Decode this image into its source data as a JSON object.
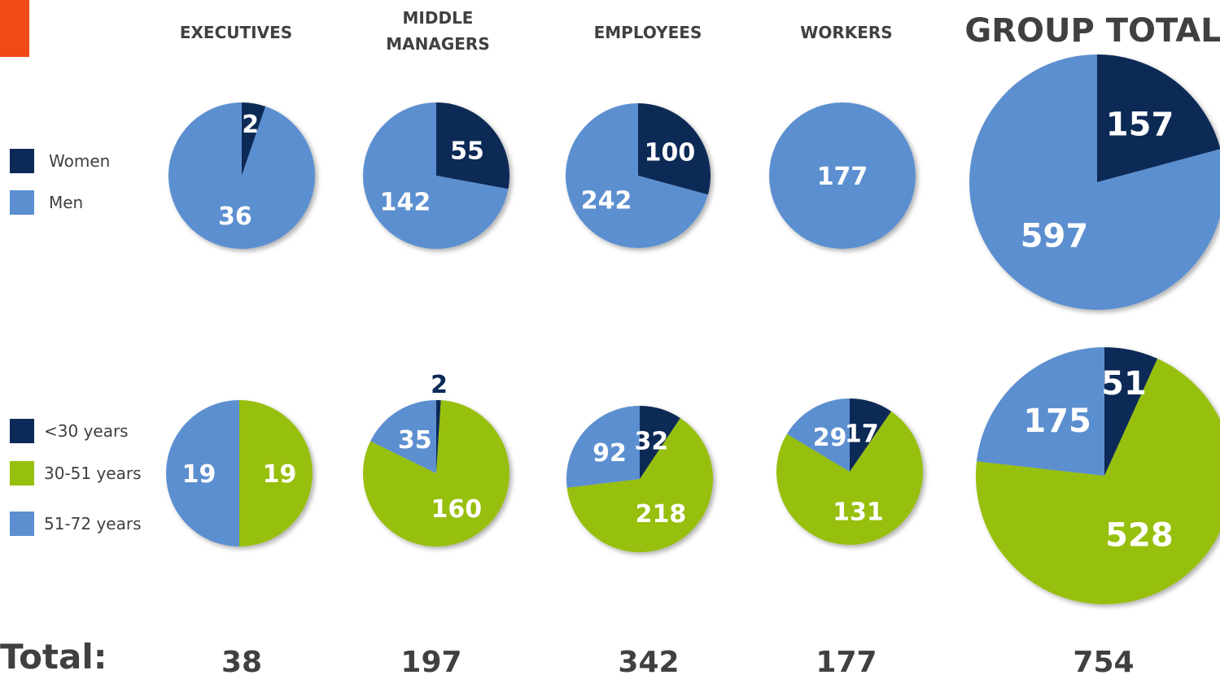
{
  "columns": [
    {
      "title": "EXECUTIVES",
      "total": 38
    },
    {
      "title": "MIDDLE MANAGERS",
      "total": 197
    },
    {
      "title": "EMPLOYEES",
      "total": 342
    },
    {
      "title": "WORKERS",
      "total": 177
    },
    {
      "title": "GROUP TOTAL",
      "total": 754
    }
  ],
  "total_label": "Total:",
  "chart_data": [
    {
      "type": "pie",
      "categories": [
        "Women",
        "Men"
      ],
      "values": [
        2,
        36
      ],
      "colors": [
        "#0c2a57",
        "#5b8fd0"
      ]
    },
    {
      "type": "pie",
      "categories": [
        "Women",
        "Men"
      ],
      "values": [
        55,
        142
      ],
      "colors": [
        "#0c2a57",
        "#5b8fd0"
      ]
    },
    {
      "type": "pie",
      "categories": [
        "Women",
        "Men"
      ],
      "values": [
        100,
        242
      ],
      "colors": [
        "#0c2a57",
        "#5b8fd0"
      ]
    },
    {
      "type": "pie",
      "categories": [
        "Men"
      ],
      "values": [
        177
      ],
      "colors": [
        "#5b8fd0"
      ]
    },
    {
      "type": "pie",
      "categories": [
        "Women",
        "Men"
      ],
      "values": [
        157,
        597
      ],
      "colors": [
        "#0c2a57",
        "#5b8fd0"
      ]
    },
    {
      "type": "pie",
      "categories": [
        "30-51 years",
        "51-72 years"
      ],
      "values": [
        19,
        19
      ],
      "colors": [
        "#97bf0d",
        "#5b8fd0"
      ]
    },
    {
      "type": "pie",
      "categories": [
        "<30 years",
        "30-51 years",
        "51-72 years"
      ],
      "values": [
        2,
        160,
        35
      ],
      "colors": [
        "#0c2a57",
        "#97bf0d",
        "#5b8fd0"
      ]
    },
    {
      "type": "pie",
      "categories": [
        "<30 years",
        "30-51 years",
        "51-72 years"
      ],
      "values": [
        32,
        218,
        92
      ],
      "colors": [
        "#0c2a57",
        "#97bf0d",
        "#5b8fd0"
      ]
    },
    {
      "type": "pie",
      "categories": [
        "<30 years",
        "30-51 years",
        "51-72 years"
      ],
      "values": [
        17,
        131,
        29
      ],
      "colors": [
        "#0c2a57",
        "#97bf0d",
        "#5b8fd0"
      ]
    },
    {
      "type": "pie",
      "categories": [
        "<30 years",
        "30-51 years",
        "51-72 years"
      ],
      "values": [
        51,
        528,
        175
      ],
      "colors": [
        "#0c2a57",
        "#97bf0d",
        "#5b8fd0"
      ]
    }
  ]
}
